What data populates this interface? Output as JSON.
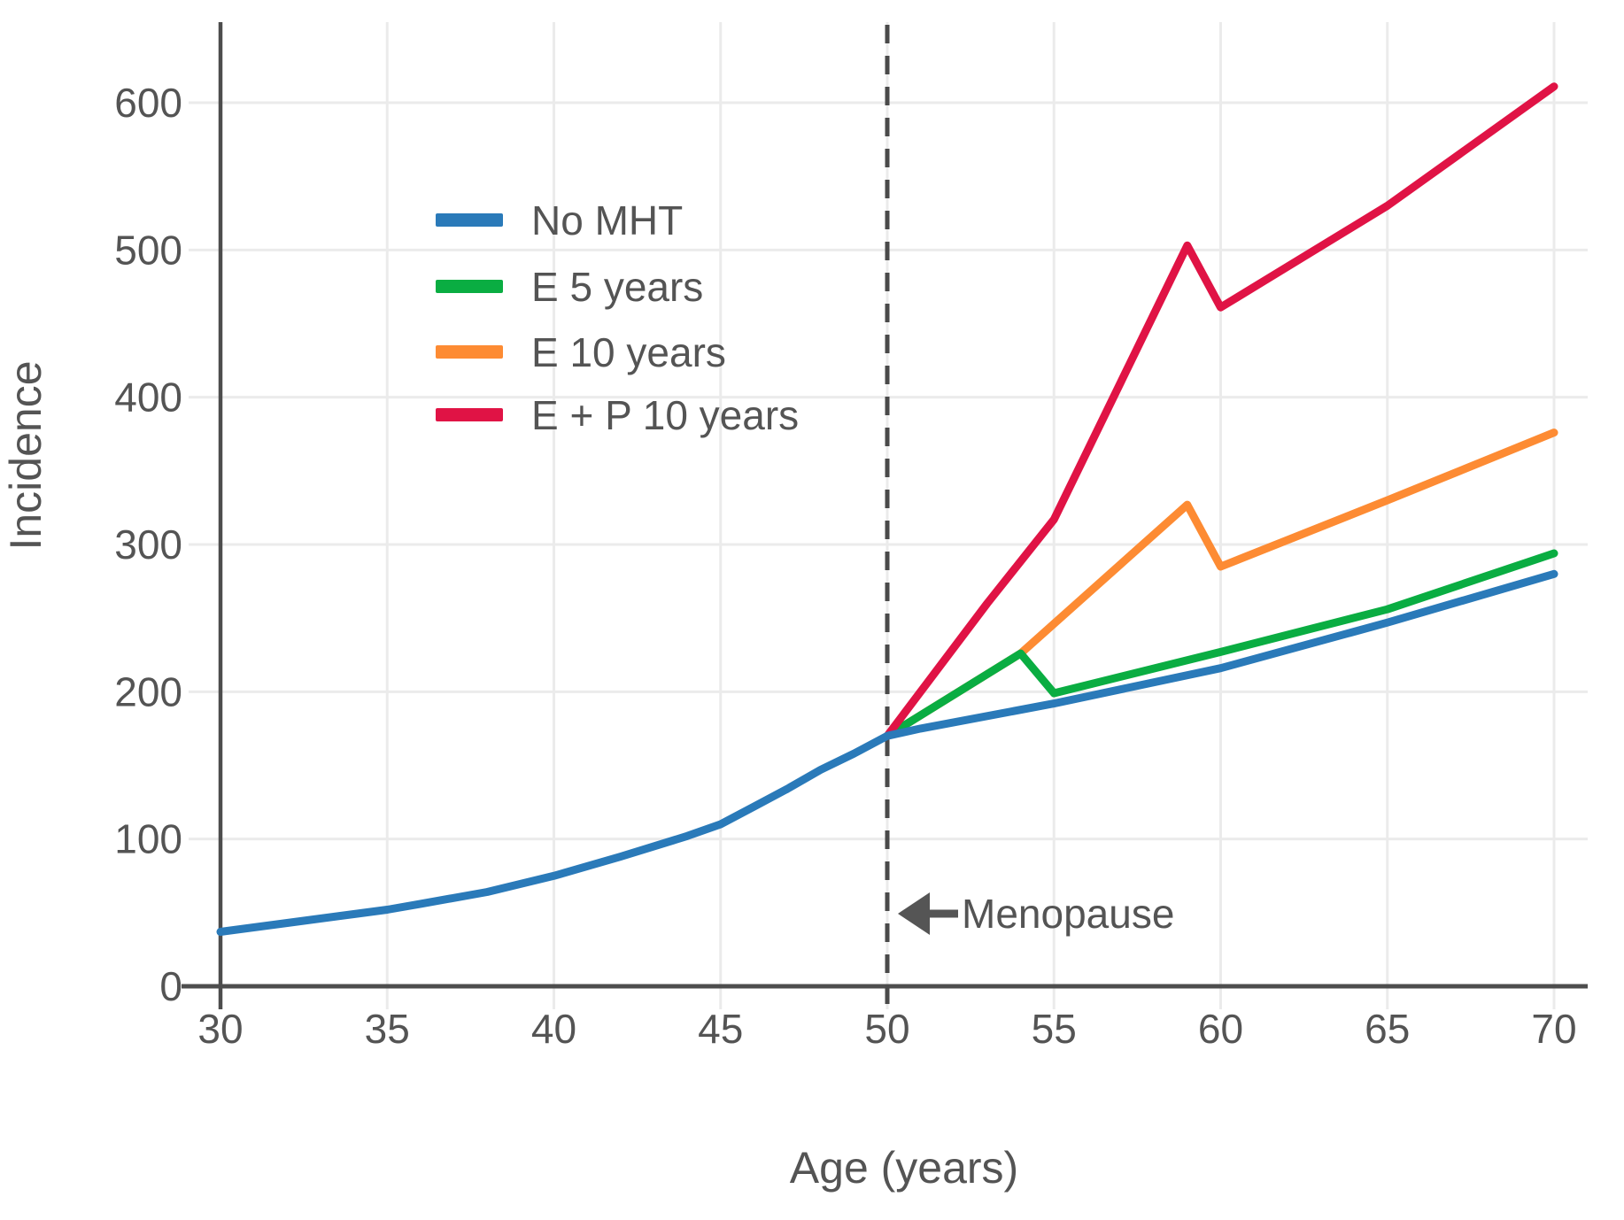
{
  "figure": {
    "background": "#ffffff"
  },
  "chart_data": {
    "type": "line",
    "title": "",
    "xlabel": "Age (years)",
    "ylabel": "Incidence",
    "x_ticks": [
      30,
      35,
      40,
      45,
      50,
      55,
      60,
      65,
      70
    ],
    "y_ticks": [
      0,
      100,
      200,
      300,
      400,
      500,
      600
    ],
    "xlim": [
      30,
      71
    ],
    "ylim": [
      0,
      655
    ],
    "grid": true,
    "legend_position": "upper left inside",
    "annotation": {
      "label": "Menopause",
      "age": 50,
      "style": "dashed vertical line with left-pointing arrow"
    },
    "series": [
      {
        "name": "No MHT",
        "color": "#2a7ab9",
        "points": [
          [
            30,
            37
          ],
          [
            32,
            43
          ],
          [
            34,
            49
          ],
          [
            35,
            52
          ],
          [
            36,
            56
          ],
          [
            38,
            64
          ],
          [
            40,
            75
          ],
          [
            42,
            88
          ],
          [
            44,
            102
          ],
          [
            45,
            110
          ],
          [
            46,
            122
          ],
          [
            47,
            134
          ],
          [
            48,
            147
          ],
          [
            49,
            158
          ],
          [
            50,
            170
          ],
          [
            51,
            175
          ],
          [
            55,
            192
          ],
          [
            60,
            216
          ],
          [
            65,
            247
          ],
          [
            70,
            280
          ]
        ]
      },
      {
        "name": "E 5 years",
        "color": "#0aad42",
        "points": [
          [
            50,
            170
          ],
          [
            54,
            226
          ],
          [
            55,
            199
          ],
          [
            60,
            227
          ],
          [
            65,
            256
          ],
          [
            70,
            294
          ]
        ]
      },
      {
        "name": "E 10 years",
        "color": "#fd8b33",
        "points": [
          [
            50,
            170
          ],
          [
            54,
            226
          ],
          [
            59,
            327
          ],
          [
            60,
            285
          ],
          [
            65,
            330
          ],
          [
            70,
            376
          ]
        ]
      },
      {
        "name": "E + P 10 years",
        "color": "#e01345",
        "points": [
          [
            50,
            170
          ],
          [
            53,
            260
          ],
          [
            55,
            317
          ],
          [
            59,
            503
          ],
          [
            60,
            461
          ],
          [
            65,
            530
          ],
          [
            70,
            611
          ]
        ]
      }
    ],
    "colors": {
      "text": "#545454",
      "grid": "#ebebeb",
      "axis": "#4d4d4d",
      "annotation": "#4a4a4a"
    }
  }
}
